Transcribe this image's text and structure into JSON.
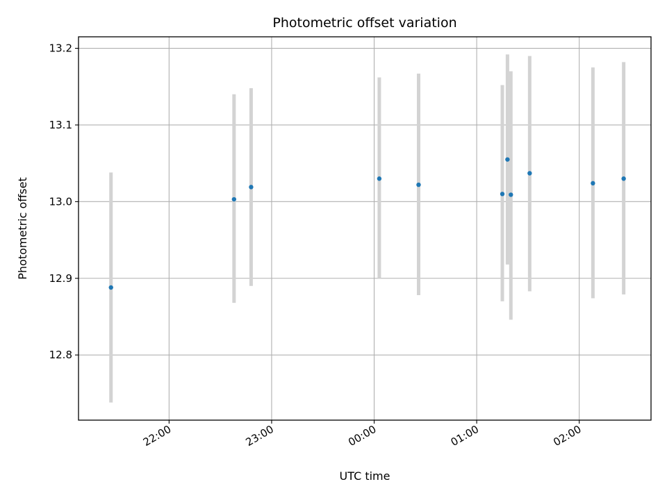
{
  "chart_data": {
    "type": "scatter",
    "title": "Photometric offset variation",
    "xlabel": "UTC time",
    "ylabel": "Photometric offset",
    "x_axis_kind": "time (minutes after 00:00 UTC; negative = previous day)",
    "xlim": [
      -173,
      162
    ],
    "ylim": [
      12.715,
      13.215
    ],
    "x_ticks": [
      {
        "value": -120,
        "label": "22:00"
      },
      {
        "value": -60,
        "label": "23:00"
      },
      {
        "value": 0,
        "label": "00:00"
      },
      {
        "value": 60,
        "label": "01:00"
      },
      {
        "value": 120,
        "label": "02:00"
      }
    ],
    "y_ticks": [
      {
        "value": 12.8,
        "label": "12.8"
      },
      {
        "value": 12.9,
        "label": "12.9"
      },
      {
        "value": 13.0,
        "label": "13.0"
      },
      {
        "value": 13.1,
        "label": "13.1"
      },
      {
        "value": 13.2,
        "label": "13.2"
      }
    ],
    "grid": true,
    "point_color": "#1f77b4",
    "errorbar_color": "#d3d3d3",
    "points": [
      {
        "time": "21:26",
        "x": -154,
        "y": 12.888,
        "err_low": 12.738,
        "err_high": 13.038
      },
      {
        "time": "22:38",
        "x": -82,
        "y": 13.003,
        "err_low": 12.868,
        "err_high": 13.14
      },
      {
        "time": "22:48",
        "x": -72,
        "y": 13.019,
        "err_low": 12.89,
        "err_high": 13.148
      },
      {
        "time": "00:03",
        "x": 3,
        "y": 13.03,
        "err_low": 12.9,
        "err_high": 13.162
      },
      {
        "time": "00:26",
        "x": 26,
        "y": 13.022,
        "err_low": 12.878,
        "err_high": 13.167
      },
      {
        "time": "01:15",
        "x": 75,
        "y": 13.01,
        "err_low": 12.87,
        "err_high": 13.152
      },
      {
        "time": "01:18",
        "x": 78,
        "y": 13.055,
        "err_low": 12.918,
        "err_high": 13.192
      },
      {
        "time": "01:20",
        "x": 80,
        "y": 13.009,
        "err_low": 12.846,
        "err_high": 13.17
      },
      {
        "time": "01:31",
        "x": 91,
        "y": 13.037,
        "err_low": 12.883,
        "err_high": 13.19
      },
      {
        "time": "02:08",
        "x": 128,
        "y": 13.024,
        "err_low": 12.874,
        "err_high": 13.175
      },
      {
        "time": "02:26",
        "x": 146,
        "y": 13.03,
        "err_low": 12.879,
        "err_high": 13.182
      }
    ]
  }
}
